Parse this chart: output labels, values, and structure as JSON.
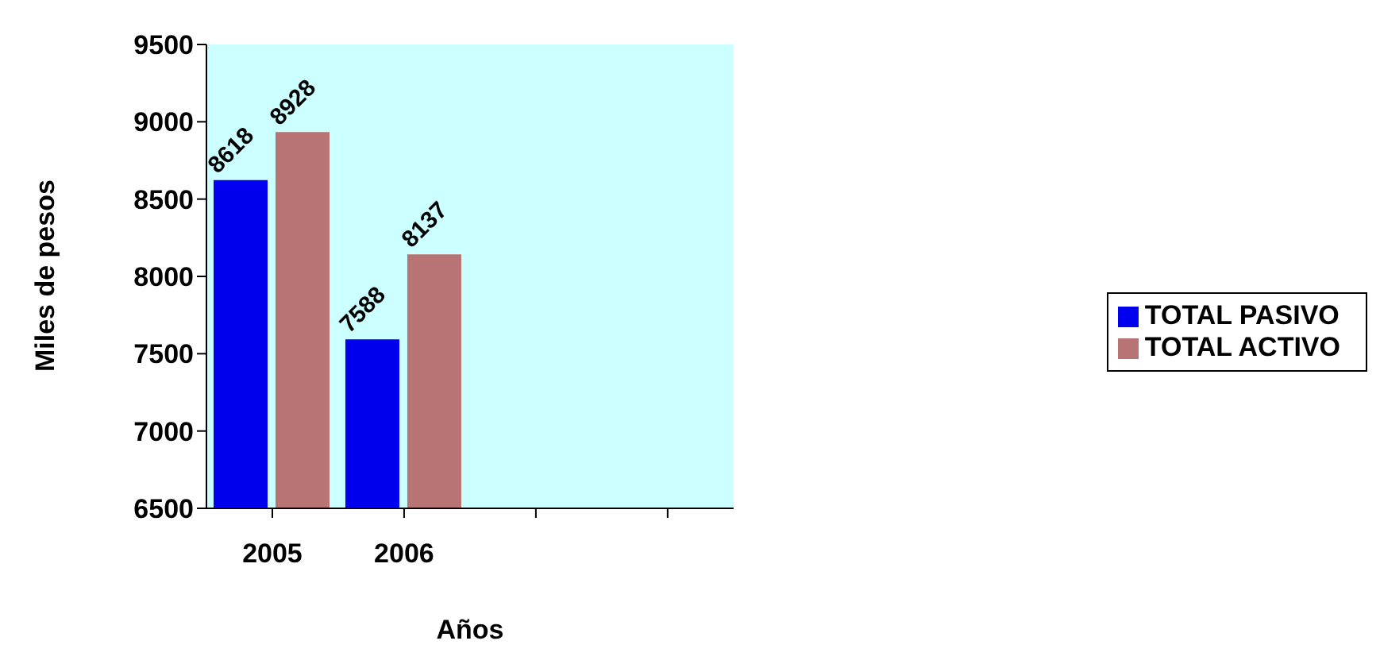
{
  "chart_data": {
    "type": "bar",
    "xlabel": "Años",
    "ylabel": "Miles de pesos",
    "categories": [
      "2005",
      "2006",
      null,
      null
    ],
    "series": [
      {
        "name": "TOTAL PASIVO",
        "color": "#0000ee",
        "values": [
          8618,
          7588,
          null,
          null
        ]
      },
      {
        "name": "TOTAL ACTIVO",
        "color": "#b87474",
        "values": [
          8928,
          8137,
          null,
          null
        ]
      }
    ],
    "ylim": [
      6500,
      9500
    ],
    "yticks": [
      6500,
      7000,
      7500,
      8000,
      8500,
      9000,
      9500
    ],
    "data_labels": true,
    "legend": "right",
    "grid": false
  }
}
